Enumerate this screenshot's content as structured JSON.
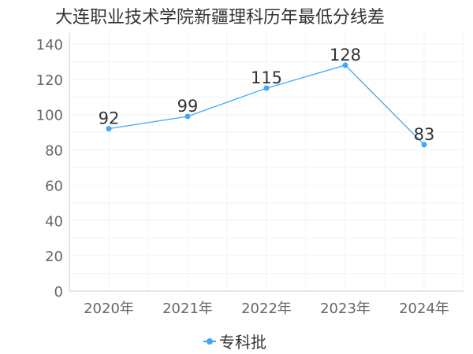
{
  "chart_data": {
    "type": "line",
    "title": "大连职业技术学院新疆理科历年最低分线差",
    "categories": [
      "2020年",
      "2021年",
      "2022年",
      "2023年",
      "2024年"
    ],
    "series": [
      {
        "name": "专科批",
        "values": [
          92,
          99,
          115,
          128,
          83
        ],
        "color": "#3fa7f5"
      }
    ],
    "yticks": [
      "0",
      "20",
      "40",
      "60",
      "80",
      "100",
      "120",
      "140"
    ],
    "ylim": [
      0,
      150
    ],
    "grid": true,
    "legend": "bottom-center"
  }
}
